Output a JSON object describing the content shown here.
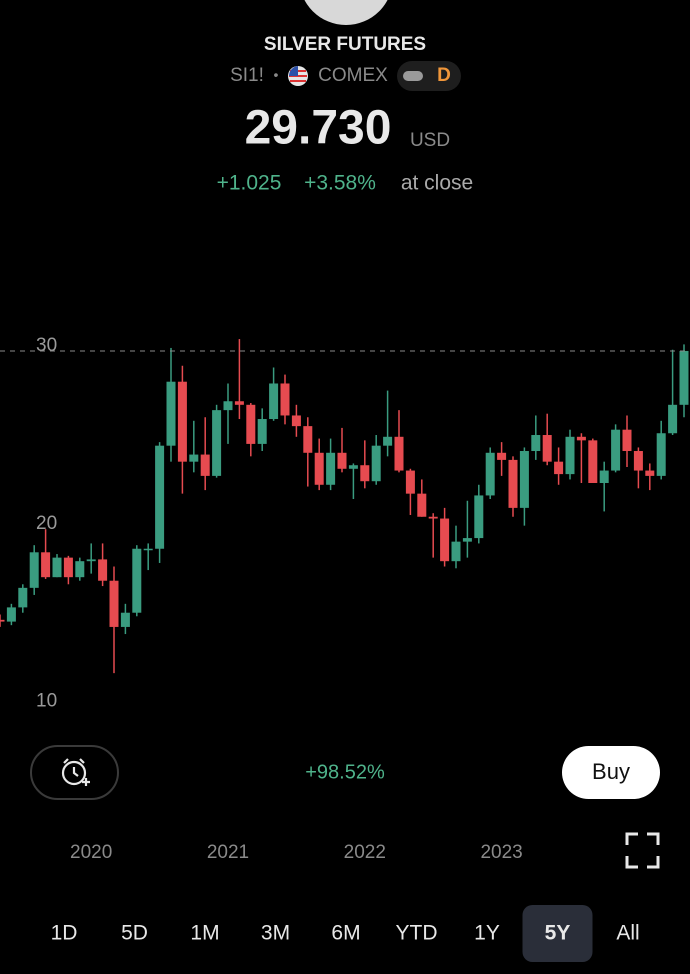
{
  "header": {
    "title": "SILVER FUTURES",
    "symbol": "SI1!",
    "separator": "•",
    "exchange": "COMEX",
    "badge": "D",
    "price": "29.730",
    "currency": "USD",
    "change": "+1.025",
    "change_percent": "+3.58%",
    "status": "at close"
  },
  "chart_data": {
    "type": "candlestick",
    "categories": [
      null,
      null,
      null,
      null,
      null,
      null,
      null,
      null,
      "2020",
      null,
      null,
      null,
      null,
      null,
      null,
      null,
      null,
      null,
      null,
      null,
      "2021",
      null,
      null,
      null,
      null,
      null,
      null,
      null,
      null,
      null,
      null,
      null,
      "2022",
      null,
      null,
      null,
      null,
      null,
      null,
      null,
      null,
      null,
      null,
      null,
      "2023",
      null,
      null,
      null,
      null,
      null,
      null,
      null,
      null,
      null,
      null,
      null,
      null,
      null,
      null,
      null,
      null
    ],
    "open": [
      14.6,
      14.5,
      15.3,
      16.4,
      18.4,
      17.0,
      18.1,
      17.0,
      17.9,
      18.0,
      16.8,
      14.2,
      15.0,
      18.6,
      18.6,
      24.4,
      28.0,
      23.5,
      23.9,
      22.7,
      26.4,
      26.9,
      26.7,
      24.5,
      25.9,
      27.9,
      26.1,
      25.5,
      24.0,
      22.2,
      24.0,
      23.1,
      23.3,
      22.4,
      24.4,
      24.9,
      23.0,
      21.7,
      20.4,
      20.3,
      17.9,
      19.0,
      19.2,
      21.6,
      24.0,
      23.6,
      20.9,
      24.1,
      25.0,
      23.5,
      22.8,
      24.9,
      24.7,
      22.3,
      23.0,
      25.3,
      24.1,
      23.0,
      22.7,
      25.1,
      26.7
    ],
    "high": [
      14.9,
      15.5,
      16.6,
      18.8,
      19.7,
      18.3,
      18.2,
      18.1,
      18.9,
      18.9,
      17.6,
      15.5,
      18.8,
      18.9,
      24.6,
      29.9,
      28.9,
      25.8,
      26.0,
      26.7,
      27.9,
      30.4,
      26.8,
      26.5,
      28.8,
      28.4,
      26.7,
      26.0,
      24.8,
      24.8,
      25.4,
      23.4,
      24.7,
      25.0,
      27.5,
      26.4,
      23.1,
      22.5,
      20.6,
      20.9,
      19.9,
      21.3,
      22.2,
      24.3,
      24.6,
      23.8,
      24.3,
      26.1,
      26.2,
      24.3,
      25.3,
      25.1,
      24.8,
      23.5,
      25.6,
      26.1,
      24.3,
      23.4,
      25.8,
      29.8,
      30.1
    ],
    "low": [
      14.2,
      14.3,
      15.0,
      16.0,
      16.9,
      17.0,
      16.6,
      16.8,
      17.2,
      16.5,
      11.6,
      13.8,
      14.8,
      17.4,
      17.8,
      23.5,
      21.7,
      22.9,
      21.9,
      22.6,
      24.5,
      25.9,
      23.8,
      24.1,
      25.8,
      25.6,
      24.9,
      22.1,
      21.9,
      21.9,
      22.9,
      21.4,
      22.0,
      22.2,
      23.8,
      22.9,
      20.5,
      20.4,
      18.1,
      17.6,
      17.5,
      18.1,
      18.9,
      21.4,
      22.7,
      20.4,
      19.9,
      23.6,
      23.3,
      22.2,
      22.5,
      22.3,
      22.3,
      20.7,
      22.9,
      23.2,
      22.0,
      21.9,
      22.5,
      25.0,
      26.0
    ],
    "close": [
      14.5,
      15.3,
      16.4,
      18.4,
      17.0,
      18.1,
      17.0,
      17.9,
      18.0,
      16.8,
      14.2,
      15.0,
      18.6,
      18.6,
      24.4,
      28.0,
      23.5,
      23.9,
      22.7,
      26.4,
      26.9,
      26.7,
      24.5,
      25.9,
      27.9,
      26.1,
      25.5,
      24.0,
      22.2,
      24.0,
      23.1,
      23.3,
      22.4,
      24.4,
      24.9,
      23.0,
      21.7,
      20.4,
      20.3,
      17.9,
      19.0,
      19.2,
      21.6,
      24.0,
      23.6,
      20.9,
      24.1,
      25.0,
      23.5,
      22.8,
      24.9,
      24.7,
      22.3,
      23.0,
      25.3,
      24.1,
      23.0,
      22.7,
      25.1,
      26.7,
      29.73
    ],
    "up_color": "#3a9c80",
    "down_color": "#e64b50",
    "ylim": [
      8.4,
      37.1
    ],
    "yticks": [
      10,
      20,
      30
    ],
    "grid": false,
    "performance": "+98.52%"
  },
  "controls": {
    "buy": "Buy",
    "ranges": [
      "1D",
      "5D",
      "1M",
      "3M",
      "6M",
      "YTD",
      "1Y",
      "5Y",
      "All"
    ],
    "selected": 7
  }
}
